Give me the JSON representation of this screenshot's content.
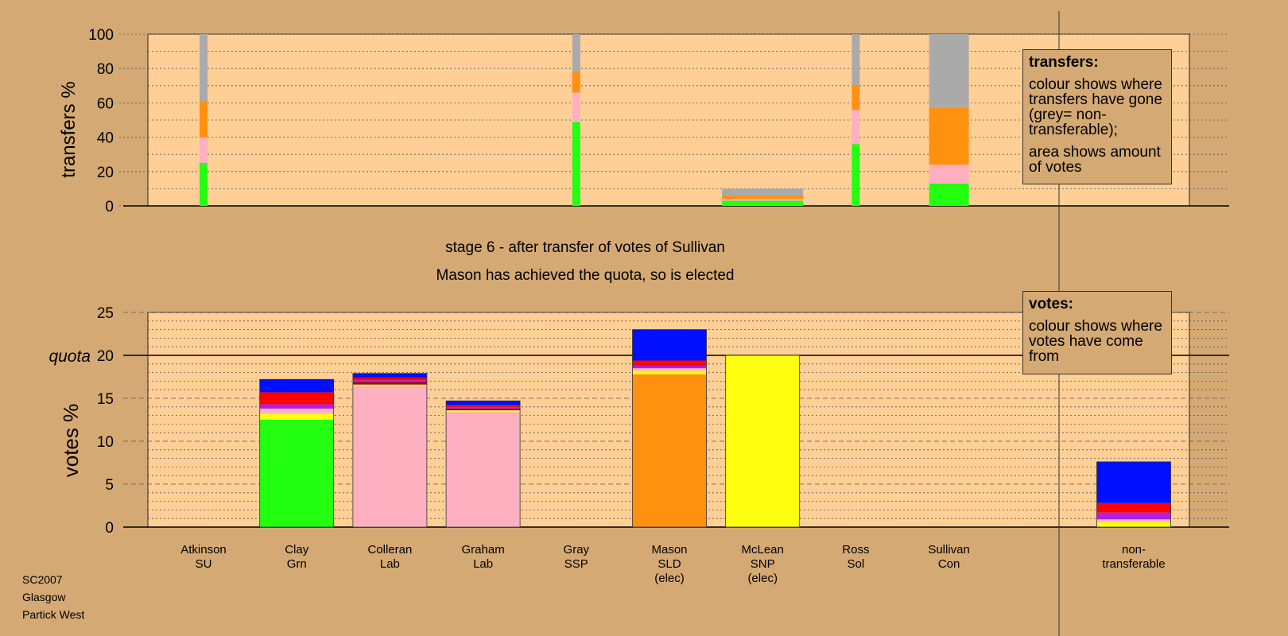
{
  "captions": {
    "stage": "stage 6 - after transfer of votes of Sullivan",
    "result": "Mason has achieved the quota, so is elected"
  },
  "legend_transfers": {
    "title": "transfers:",
    "lines": [
      "colour shows where transfers have gone (grey= non-transferable);",
      "area shows amount of votes"
    ]
  },
  "legend_votes": {
    "title": "votes:",
    "lines": [
      "colour shows where votes have come from"
    ]
  },
  "footer": {
    "lines": [
      "SC2007",
      "Glasgow",
      "Partick West"
    ]
  },
  "colors": {
    "background": "#d4a973",
    "plot_background": "#ffcf96",
    "grey": "#aaaaaa",
    "orange": "#ff9010",
    "pink": "#ffb0c0",
    "green": "#22ff10",
    "yellow": "#ffff10",
    "red": "#ff0000",
    "purple": "#b020e0",
    "blue": "#0010ff",
    "dark_red": "#901020"
  },
  "chart_data": [
    {
      "type": "bar",
      "name": "transfers",
      "ylabel": "transfers %",
      "ylim": [
        0,
        100
      ],
      "yticks": [
        0,
        20,
        40,
        60,
        80,
        100
      ],
      "grid": true,
      "legend_position": "top-right",
      "stacking_order_bottom_to_top": [
        "green",
        "pink",
        "orange",
        "grey"
      ],
      "bars": [
        {
          "candidate": "Atkinson",
          "segments": {
            "green": 25,
            "pink": 15,
            "orange": 21,
            "grey": 39
          }
        },
        {
          "candidate": "Gray",
          "segments": {
            "green": 49,
            "pink": 17,
            "orange": 12,
            "grey": 22
          }
        },
        {
          "candidate": "McLean",
          "segments": {
            "green": 3,
            "pink": 1,
            "orange": 2,
            "grey": 4
          }
        },
        {
          "candidate": "Ross",
          "segments": {
            "green": 36,
            "pink": 20,
            "orange": 14,
            "grey": 30
          }
        },
        {
          "candidate": "Sullivan",
          "segments": {
            "green": 13,
            "pink": 11,
            "orange": 33,
            "grey": 43
          }
        }
      ]
    },
    {
      "type": "bar",
      "name": "votes",
      "ylabel": "votes %",
      "ylim": [
        0,
        25
      ],
      "yticks": [
        0,
        5,
        10,
        15,
        20,
        25
      ],
      "quota": 20,
      "quota_label": "quota",
      "grid": true,
      "legend_position": "top-right",
      "categories": [
        {
          "name": "Atkinson",
          "party": "SU",
          "note": ""
        },
        {
          "name": "Clay",
          "party": "Grn",
          "note": ""
        },
        {
          "name": "Colleran",
          "party": "Lab",
          "note": ""
        },
        {
          "name": "Graham",
          "party": "Lab",
          "note": ""
        },
        {
          "name": "Gray",
          "party": "SSP",
          "note": ""
        },
        {
          "name": "Mason",
          "party": "SLD",
          "note": "(elec)"
        },
        {
          "name": "McLean",
          "party": "SNP",
          "note": "(elec)"
        },
        {
          "name": "Ross",
          "party": "Sol",
          "note": ""
        },
        {
          "name": "Sullivan",
          "party": "Con",
          "note": ""
        }
      ],
      "nontransferable_label": [
        "non-",
        "transferable"
      ],
      "stacks": [
        {
          "candidate": "Atkinson",
          "segments": []
        },
        {
          "candidate": "Clay",
          "segments": [
            [
              "green",
              12.5
            ],
            [
              "yellow",
              0.7
            ],
            [
              "pink",
              0.6
            ],
            [
              "purple",
              0.5
            ],
            [
              "red",
              0.4
            ],
            [
              "red",
              1.0
            ],
            [
              "blue",
              1.5
            ]
          ]
        },
        {
          "candidate": "Colleran",
          "segments": [
            [
              "pink",
              16.4
            ],
            [
              "yellow",
              0.2
            ],
            [
              "dark_red",
              0.3
            ],
            [
              "purple",
              0.2
            ],
            [
              "red",
              0.3
            ],
            [
              "blue",
              0.5
            ]
          ]
        },
        {
          "candidate": "Graham",
          "segments": [
            [
              "pink",
              13.4
            ],
            [
              "yellow",
              0.2
            ],
            [
              "dark_red",
              0.2
            ],
            [
              "purple",
              0.2
            ],
            [
              "red",
              0.2
            ],
            [
              "blue",
              0.5
            ]
          ]
        },
        {
          "candidate": "Gray",
          "segments": []
        },
        {
          "candidate": "Mason",
          "segments": [
            [
              "orange",
              17.8
            ],
            [
              "yellow",
              0.4
            ],
            [
              "pink",
              0.3
            ],
            [
              "purple",
              0.3
            ],
            [
              "red",
              0.3
            ],
            [
              "red",
              0.3
            ],
            [
              "blue",
              3.6
            ]
          ]
        },
        {
          "candidate": "McLean",
          "segments": [
            [
              "yellow",
              20.0
            ]
          ]
        },
        {
          "candidate": "Ross",
          "segments": []
        },
        {
          "candidate": "Sullivan",
          "segments": []
        },
        {
          "candidate": "non-transferable",
          "segments": [
            [
              "yellow",
              0.6
            ],
            [
              "pink",
              0.3
            ],
            [
              "purple",
              0.8
            ],
            [
              "red",
              0.3
            ],
            [
              "red",
              0.8
            ],
            [
              "blue",
              4.8
            ]
          ]
        }
      ]
    }
  ]
}
